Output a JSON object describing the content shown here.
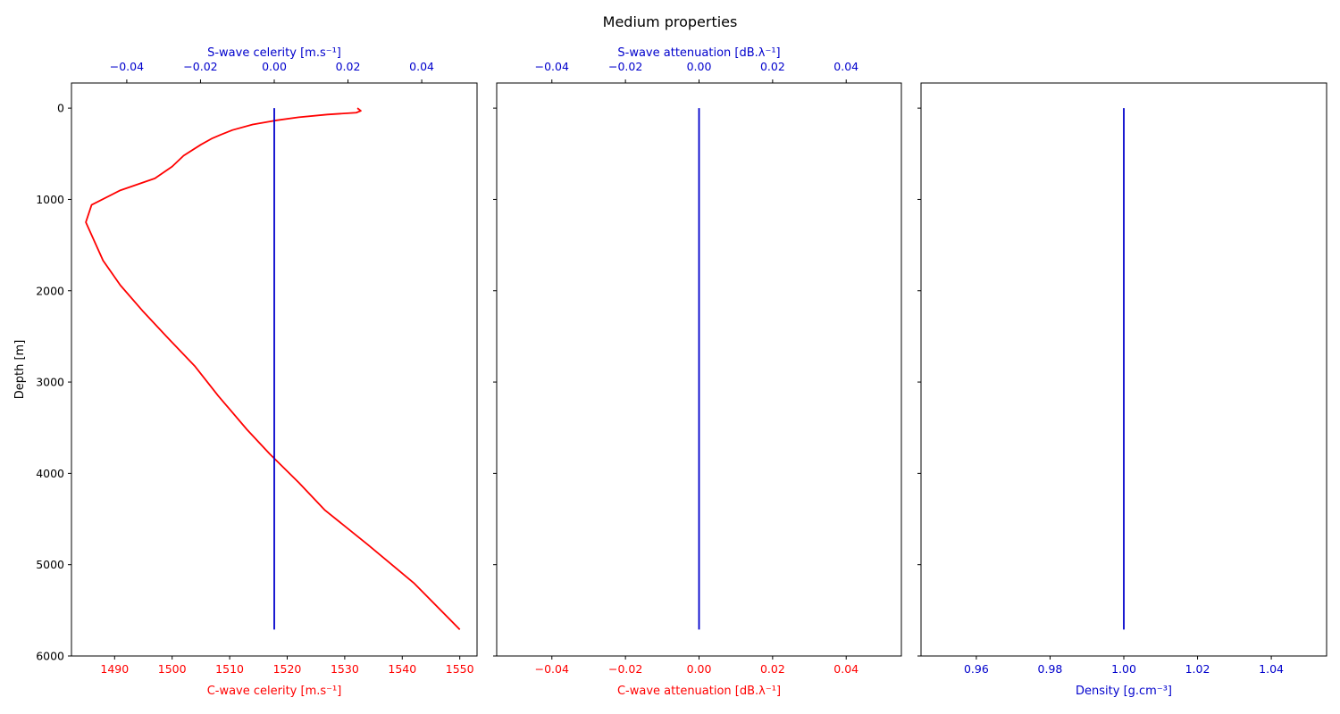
{
  "figure": {
    "title": "Medium properties"
  },
  "colors": {
    "red": "#ff0000",
    "blue": "#0000cc",
    "black": "#000000"
  },
  "chart_data": [
    {
      "type": "line",
      "ylabel": "Depth [m]",
      "ylim": [
        6000,
        -275
      ],
      "yticks": [
        0,
        1000,
        2000,
        3000,
        4000,
        5000,
        6000
      ],
      "bottom_axis": {
        "label": "C-wave celerity [m.s⁻¹]",
        "color": "red",
        "xlim": [
          1482.5,
          1553.0
        ],
        "ticks": [
          1490,
          1500,
          1510,
          1520,
          1530,
          1540,
          1550
        ]
      },
      "top_axis": {
        "label": "S-wave celerity [m.s⁻¹]",
        "color": "blue",
        "xlim": [
          -0.055,
          0.055
        ],
        "ticks": [
          -0.04,
          -0.02,
          0.0,
          0.02,
          0.04
        ]
      },
      "series": [
        {
          "axis": "bottom",
          "color": "red",
          "points": [
            [
              1532.2,
              0
            ],
            [
              1532.8,
              30
            ],
            [
              1532.0,
              50
            ],
            [
              1527.0,
              70
            ],
            [
              1522.0,
              100
            ],
            [
              1518.0,
              135
            ],
            [
              1514.0,
              180
            ],
            [
              1510.5,
              240
            ],
            [
              1508.5,
              290
            ],
            [
              1507.0,
              330
            ],
            [
              1505.0,
              400
            ],
            [
              1502.0,
              520
            ],
            [
              1500.0,
              640
            ],
            [
              1497.0,
              770
            ],
            [
              1491.0,
              900
            ],
            [
              1486.0,
              1060
            ],
            [
              1485.0,
              1250
            ],
            [
              1488.0,
              1670
            ],
            [
              1491.0,
              1940
            ],
            [
              1495.0,
              2230
            ],
            [
              1499.0,
              2500
            ],
            [
              1504.0,
              2830
            ],
            [
              1508.0,
              3150
            ],
            [
              1513.0,
              3520
            ],
            [
              1517.0,
              3790
            ],
            [
              1522.0,
              4100
            ],
            [
              1526.5,
              4400
            ],
            [
              1534.0,
              4780
            ],
            [
              1542.0,
              5200
            ],
            [
              1550.0,
              5710
            ]
          ]
        },
        {
          "axis": "top",
          "color": "blue",
          "points": [
            [
              0,
              0
            ],
            [
              0,
              5710
            ]
          ]
        }
      ]
    },
    {
      "type": "line",
      "bottom_axis": {
        "label": "C-wave attenuation [dB.λ⁻¹]",
        "color": "red",
        "xlim": [
          -0.055,
          0.055
        ],
        "ticks": [
          -0.04,
          -0.02,
          0.0,
          0.02,
          0.04
        ]
      },
      "top_axis": {
        "label": "S-wave attenuation [dB.λ⁻¹]",
        "color": "blue",
        "xlim": [
          -0.055,
          0.055
        ],
        "ticks": [
          -0.04,
          -0.02,
          0.0,
          0.02,
          0.04
        ]
      },
      "series": [
        {
          "axis": "top",
          "color": "blue",
          "points": [
            [
              0,
              0
            ],
            [
              0,
              5710
            ]
          ]
        }
      ]
    },
    {
      "type": "line",
      "bottom_axis": {
        "label": "Density [g.cm⁻³]",
        "color": "blue",
        "xlim": [
          0.945,
          1.055
        ],
        "ticks": [
          0.96,
          0.98,
          1.0,
          1.02,
          1.04
        ]
      },
      "series": [
        {
          "axis": "bottom",
          "color": "blue",
          "points": [
            [
              1.0,
              0
            ],
            [
              1.0,
              5710
            ]
          ]
        }
      ]
    }
  ]
}
